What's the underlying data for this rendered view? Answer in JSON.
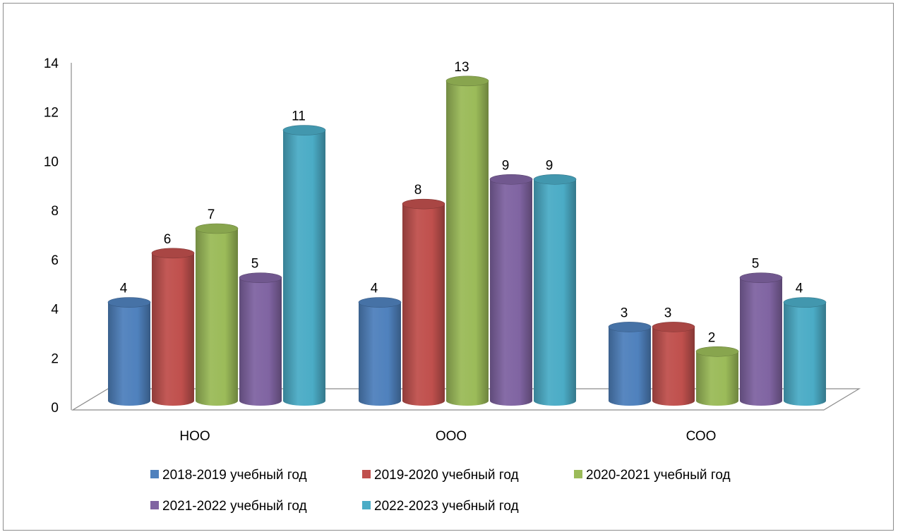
{
  "chart_data": {
    "type": "bar",
    "title": "",
    "xlabel": "",
    "ylabel": "",
    "categories": [
      "НОО",
      "ООО",
      "СОО"
    ],
    "ylim": [
      0,
      14
    ],
    "yticks": [
      "0",
      "2",
      "4",
      "6",
      "8",
      "10",
      "12",
      "14"
    ],
    "series": [
      {
        "name": "2018-2019 учебный год",
        "color": "#4f81bd",
        "values": [
          4,
          4,
          3
        ]
      },
      {
        "name": "2019-2020 учебный год",
        "color": "#c0504d",
        "values": [
          6,
          8,
          3
        ]
      },
      {
        "name": "2020-2021 учебный год",
        "color": "#9bbb59",
        "values": [
          7,
          13,
          2
        ]
      },
      {
        "name": "2021-2022 учебный год",
        "color": "#8064a2",
        "values": [
          5,
          9,
          5
        ]
      },
      {
        "name": "2022-2023 учебный год",
        "color": "#4bacc6",
        "values": [
          11,
          9,
          4
        ]
      }
    ],
    "legend_position": "bottom",
    "grid": false,
    "style": "3d-cylinder"
  }
}
